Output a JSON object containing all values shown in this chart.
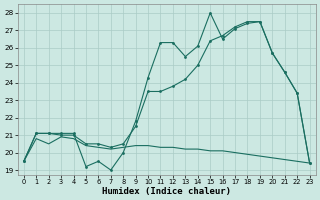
{
  "xlabel": "Humidex (Indice chaleur)",
  "xlim": [
    -0.5,
    23.5
  ],
  "ylim": [
    18.7,
    28.5
  ],
  "yticks": [
    19,
    20,
    21,
    22,
    23,
    24,
    25,
    26,
    27,
    28
  ],
  "xticks": [
    0,
    1,
    2,
    3,
    4,
    5,
    6,
    7,
    8,
    9,
    10,
    11,
    12,
    13,
    14,
    15,
    16,
    17,
    18,
    19,
    20,
    21,
    22,
    23
  ],
  "bg_color": "#cce8e2",
  "grid_color": "#aaccc6",
  "line_color": "#1a6e60",
  "line1_x": [
    0,
    1,
    2,
    3,
    4,
    5,
    6,
    7,
    8,
    9,
    10,
    11,
    12,
    13,
    14,
    15,
    16,
    17,
    18,
    19,
    20,
    21,
    22,
    23
  ],
  "line1_y": [
    19.5,
    21.1,
    21.1,
    21.1,
    21.1,
    19.2,
    19.5,
    19.0,
    20.0,
    21.8,
    24.3,
    26.3,
    26.3,
    25.5,
    26.1,
    28.0,
    26.5,
    27.1,
    27.4,
    27.5,
    25.7,
    24.6,
    23.4,
    19.4
  ],
  "line2_x": [
    0,
    1,
    2,
    3,
    4,
    5,
    6,
    7,
    8,
    9,
    10,
    11,
    12,
    13,
    14,
    15,
    16,
    17,
    18,
    19,
    20,
    21,
    22,
    23
  ],
  "line2_y": [
    19.5,
    21.1,
    21.1,
    21.0,
    21.0,
    20.5,
    20.5,
    20.3,
    20.5,
    21.5,
    23.5,
    23.5,
    23.8,
    24.2,
    25.0,
    26.4,
    26.7,
    27.2,
    27.5,
    27.5,
    25.7,
    24.6,
    23.4,
    19.4
  ],
  "line3_x": [
    0,
    1,
    2,
    3,
    4,
    5,
    6,
    7,
    8,
    9,
    10,
    11,
    12,
    13,
    14,
    15,
    16,
    17,
    18,
    19,
    20,
    21,
    22,
    23
  ],
  "line3_y": [
    19.5,
    20.8,
    20.5,
    20.9,
    20.8,
    20.4,
    20.3,
    20.2,
    20.3,
    20.4,
    20.4,
    20.3,
    20.3,
    20.2,
    20.2,
    20.1,
    20.1,
    20.0,
    19.9,
    19.8,
    19.7,
    19.6,
    19.5,
    19.4
  ]
}
